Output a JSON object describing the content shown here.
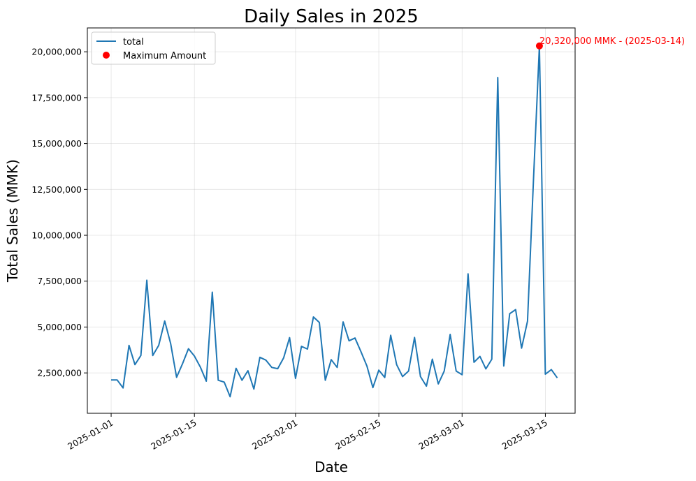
{
  "chart_data": {
    "type": "line",
    "title": "Daily Sales in 2025",
    "xlabel": "Date",
    "ylabel": "Total Sales (MMK)",
    "x_ticks": [
      "2025-01-01",
      "2025-01-15",
      "2025-02-01",
      "2025-02-15",
      "2025-03-01",
      "2025-03-15"
    ],
    "y_ticks": [
      "2,500,000",
      "5,000,000",
      "7,500,000",
      "10,000,000",
      "12,500,000",
      "15,000,000",
      "17,500,000",
      "20,000,000"
    ],
    "y_tick_values": [
      2500000,
      5000000,
      7500000,
      10000000,
      12500000,
      15000000,
      17500000,
      20000000
    ],
    "xlim": [
      "2024-12-28",
      "2025-03-20"
    ],
    "ylim": [
      300000,
      21300000
    ],
    "grid": true,
    "legend_position": "top-left",
    "series": [
      {
        "name": "total",
        "color": "#1f77b4",
        "x": [
          "2025-01-01",
          "2025-01-02",
          "2025-01-03",
          "2025-01-04",
          "2025-01-05",
          "2025-01-06",
          "2025-01-07",
          "2025-01-08",
          "2025-01-09",
          "2025-01-10",
          "2025-01-11",
          "2025-01-12",
          "2025-01-13",
          "2025-01-14",
          "2025-01-15",
          "2025-01-16",
          "2025-01-17",
          "2025-01-18",
          "2025-01-19",
          "2025-01-20",
          "2025-01-21",
          "2025-01-22",
          "2025-01-23",
          "2025-01-24",
          "2025-01-25",
          "2025-01-26",
          "2025-01-27",
          "2025-01-28",
          "2025-01-29",
          "2025-01-30",
          "2025-01-31",
          "2025-02-01",
          "2025-02-02",
          "2025-02-03",
          "2025-02-04",
          "2025-02-05",
          "2025-02-06",
          "2025-02-07",
          "2025-02-08",
          "2025-02-09",
          "2025-02-10",
          "2025-02-11",
          "2025-02-12",
          "2025-02-13",
          "2025-02-14",
          "2025-02-15",
          "2025-02-16",
          "2025-02-17",
          "2025-02-18",
          "2025-02-19",
          "2025-02-20",
          "2025-02-21",
          "2025-02-22",
          "2025-02-23",
          "2025-02-24",
          "2025-02-25",
          "2025-02-26",
          "2025-02-27",
          "2025-02-28",
          "2025-03-01",
          "2025-03-02",
          "2025-03-03",
          "2025-03-04",
          "2025-03-05",
          "2025-03-06",
          "2025-03-07",
          "2025-03-08",
          "2025-03-09",
          "2025-03-10",
          "2025-03-11",
          "2025-03-12",
          "2025-03-13",
          "2025-03-14",
          "2025-03-15",
          "2025-03-16",
          "2025-03-17"
        ],
        "values": [
          2120000,
          2120000,
          1680000,
          4000000,
          2950000,
          3450000,
          7550000,
          3450000,
          4000000,
          5330000,
          4100000,
          2260000,
          3000000,
          3820000,
          3420000,
          2820000,
          2050000,
          6900000,
          2100000,
          2000000,
          1200000,
          2750000,
          2100000,
          2620000,
          1620000,
          3350000,
          3200000,
          2800000,
          2730000,
          3320000,
          4420000,
          2200000,
          3950000,
          3800000,
          5550000,
          5250000,
          2100000,
          3220000,
          2800000,
          5280000,
          4250000,
          4400000,
          3650000,
          2870000,
          1700000,
          2650000,
          2250000,
          4550000,
          2950000,
          2300000,
          2600000,
          4430000,
          2300000,
          1780000,
          3250000,
          1900000,
          2600000,
          4600000,
          2600000,
          2400000,
          7900000,
          3080000,
          3400000,
          2720000,
          3250000,
          18600000,
          2880000,
          5730000,
          5950000,
          3850000,
          5320000,
          13000000,
          20320000,
          2430000,
          2680000,
          2230000
        ]
      }
    ],
    "max_point": {
      "name": "Maximum Amount",
      "x": "2025-03-14",
      "y": 20320000,
      "color": "#ff0000",
      "label": "20,320,000 MMK - (2025-03-14)"
    }
  }
}
